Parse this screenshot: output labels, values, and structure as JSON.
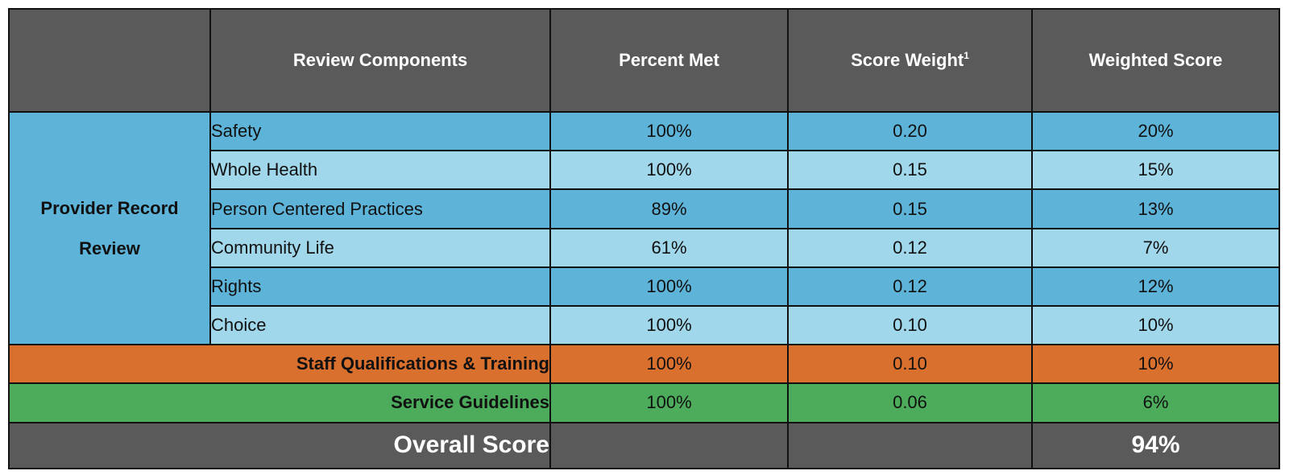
{
  "headers": {
    "components": "Review Components",
    "percent_met": "Percent Met",
    "score_weight": "Score Weight",
    "score_weight_footnote": "1",
    "weighted_score": "Weighted Score"
  },
  "group_label": "Provider Record Review",
  "rows": [
    {
      "component": "Safety",
      "percent_met": "100%",
      "score_weight": "0.20",
      "weighted_score": "20%"
    },
    {
      "component": "Whole Health",
      "percent_met": "100%",
      "score_weight": "0.15",
      "weighted_score": "15%"
    },
    {
      "component": "Person Centered Practices",
      "percent_met": "89%",
      "score_weight": "0.15",
      "weighted_score": "13%"
    },
    {
      "component": "Community Life",
      "percent_met": "61%",
      "score_weight": "0.12",
      "weighted_score": "7%"
    },
    {
      "component": "Rights",
      "percent_met": "100%",
      "score_weight": "0.12",
      "weighted_score": "12%"
    },
    {
      "component": "Choice",
      "percent_met": "100%",
      "score_weight": "0.10",
      "weighted_score": "10%"
    }
  ],
  "staff_row": {
    "label": "Staff Qualifications & Training",
    "percent_met": "100%",
    "score_weight": "0.10",
    "weighted_score": "10%"
  },
  "service_row": {
    "label": "Service Guidelines",
    "percent_met": "100%",
    "score_weight": "0.06",
    "weighted_score": "6%"
  },
  "overall": {
    "label": "Overall Score",
    "weighted_score": "94%"
  },
  "colors": {
    "header_gray": "#5a5a5a",
    "group_teal": "#377a99",
    "row_dark_blue": "#5db3d8",
    "row_light_blue": "#a1d7ea",
    "staff_orange": "#d9702e",
    "service_green": "#4cac5c"
  }
}
